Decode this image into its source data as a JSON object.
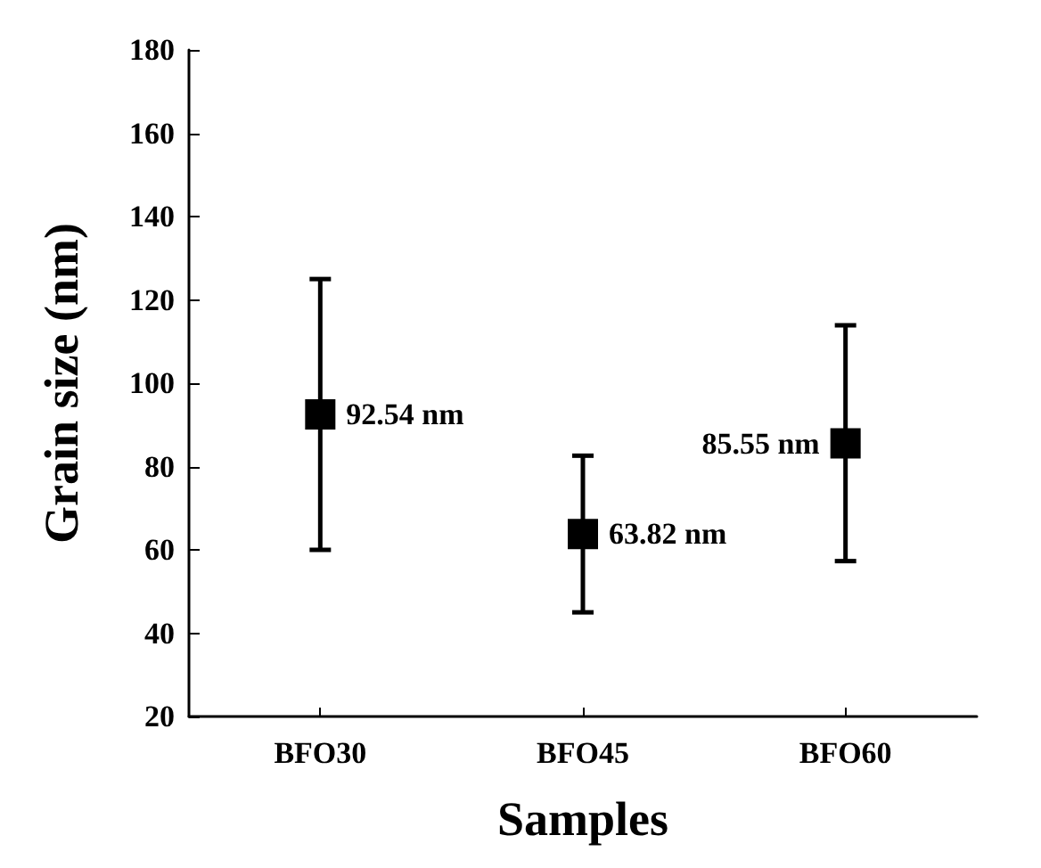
{
  "chart_data": {
    "type": "scatter",
    "xlabel": "Samples",
    "ylabel": "Grain size (nm)",
    "categories": [
      "BFO30",
      "BFO45",
      "BFO60"
    ],
    "values": [
      92.54,
      63.82,
      85.55
    ],
    "errors": [
      [
        60,
        125
      ],
      [
        45,
        82.6
      ],
      [
        57.3,
        113.9
      ]
    ],
    "value_labels": [
      "92.54 nm",
      "63.82 nm",
      "85.55 nm"
    ],
    "color": "#000000",
    "marker": "square",
    "ylim": [
      20,
      180
    ],
    "yticks": [
      20,
      40,
      60,
      80,
      100,
      120,
      140,
      160,
      180
    ],
    "grid": false
  }
}
